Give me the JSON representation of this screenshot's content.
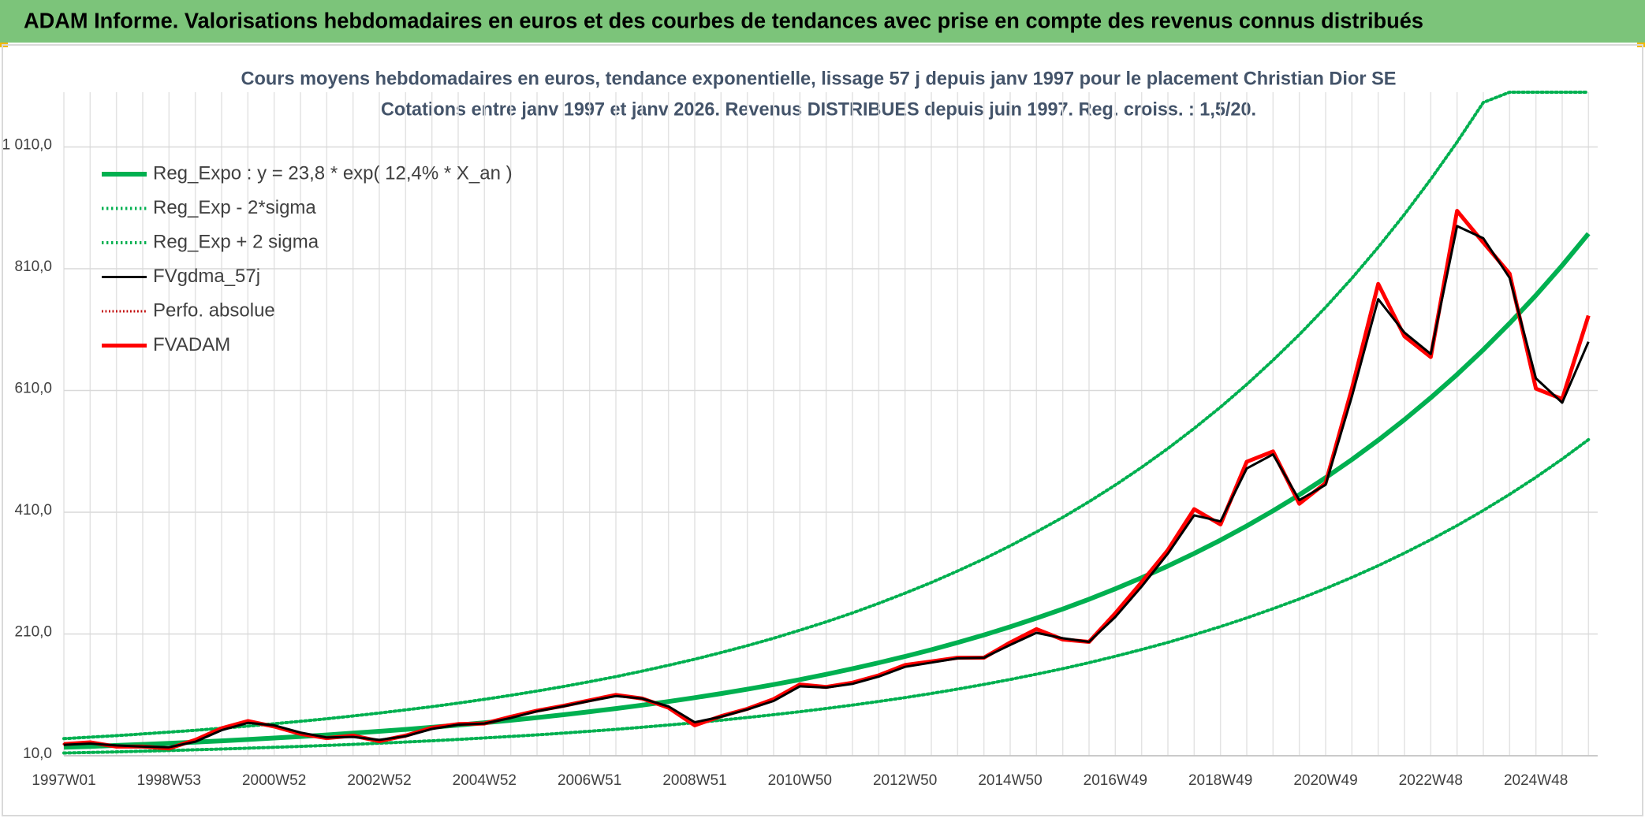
{
  "chart_data": {
    "type": "line",
    "title": "ADAM Informe. Valorisations hebdomadaires en euros et des courbes de tendances avec prise en compte des revenus connus distribués",
    "subtitle": [
      "Cours moyens hebdomadaires en euros, tendance exponentielle, lissage 57 j depuis janv 1997 pour le placement Christian Dior SE",
      "Cotations entre janv 1997 et janv 2026. Revenus DISTRIBUES depuis juin 1997. Reg. croiss. : 1,5/20."
    ],
    "categories": [
      "1997W01",
      null,
      null,
      null,
      "1998W53",
      null,
      null,
      null,
      "2000W52",
      null,
      null,
      null,
      "2002W52",
      null,
      null,
      null,
      "2004W52",
      null,
      null,
      null,
      "2006W51",
      null,
      null,
      null,
      "2008W51",
      null,
      null,
      null,
      "2010W50",
      null,
      null,
      null,
      "2012W50",
      null,
      null,
      null,
      "2014W50",
      null,
      null,
      null,
      "2016W49",
      null,
      null,
      null,
      "2018W49",
      null,
      null,
      null,
      "2020W49",
      null,
      null,
      null,
      "2022W48",
      null,
      null,
      null,
      "2024W48",
      null,
      null
    ],
    "ylim": [
      10,
      1100
    ],
    "yticks": [
      {
        "value": 10,
        "label": "10,0"
      },
      {
        "value": 210,
        "label": "210,0"
      },
      {
        "value": 410,
        "label": "410,0"
      },
      {
        "value": 610,
        "label": "610,0"
      },
      {
        "value": 810,
        "label": "810,0"
      },
      {
        "value": 1010,
        "label": "1 010,0"
      }
    ],
    "grid": true,
    "legend": "top-left",
    "series": [
      {
        "name": "Reg_Expo : y = 23,8 * exp( 12,4% *  X_an )",
        "color": "#00b050",
        "style": "solid",
        "width": 6,
        "values": [
          23.8,
          25.3,
          26.9,
          28.7,
          30.5,
          32.4,
          34.5,
          36.7,
          39.1,
          41.6,
          44.2,
          47.1,
          50.1,
          53.3,
          56.7,
          60.3,
          64.2,
          68.3,
          72.7,
          77.3,
          82.3,
          87.5,
          93.1,
          99.1,
          105.4,
          112.1,
          119.3,
          126.9,
          135.1,
          143.7,
          152.9,
          162.7,
          173.1,
          184.1,
          195.9,
          208.4,
          221.8,
          236.0,
          251.0,
          267.1,
          284.2,
          302.4,
          321.7,
          342.3,
          364.2,
          387.5,
          412.3,
          438.6,
          466.7,
          496.5,
          528.3,
          562.1,
          598.1,
          636.3,
          677.0,
          720.3,
          766.4,
          815.4,
          867.6
        ]
      },
      {
        "name": "Reg_Exp - 2*sigma",
        "color": "#00b050",
        "style": "dotted",
        "width": 4,
        "values": [
          14.5,
          15.4,
          16.4,
          17.5,
          18.6,
          19.8,
          21.0,
          22.4,
          23.9,
          25.4,
          27.0,
          28.7,
          30.6,
          32.5,
          34.6,
          36.8,
          39.2,
          41.7,
          44.3,
          47.2,
          50.2,
          53.4,
          56.8,
          60.5,
          64.3,
          68.4,
          72.8,
          77.4,
          82.4,
          87.7,
          93.3,
          99.2,
          105.6,
          112.3,
          119.5,
          127.1,
          135.3,
          144.0,
          153.1,
          162.9,
          173.4,
          184.5,
          196.2,
          208.8,
          222.2,
          236.4,
          251.5,
          267.5,
          284.7,
          302.9,
          322.3,
          342.9,
          364.8,
          388.1,
          413.0,
          439.4,
          467.5,
          497.4,
          529.2
        ]
      },
      {
        "name": "Reg_Exp + 2 sigma",
        "color": "#00b050",
        "style": "dotted",
        "width": 4,
        "values": [
          38.1,
          40.5,
          43.0,
          45.9,
          48.8,
          51.8,
          55.2,
          58.7,
          62.6,
          66.6,
          70.7,
          75.4,
          80.2,
          85.3,
          90.7,
          96.5,
          102.7,
          109.3,
          116.3,
          123.7,
          131.7,
          140.0,
          149.0,
          158.6,
          168.6,
          179.4,
          190.9,
          203.0,
          216.2,
          229.9,
          244.6,
          260.3,
          277.0,
          294.6,
          313.4,
          333.4,
          354.9,
          377.6,
          401.6,
          427.4,
          454.7,
          483.8,
          514.7,
          547.7,
          582.7,
          620.0,
          659.7,
          701.8,
          746.7,
          794.4,
          845.3,
          899.4,
          957.0,
          1018.1,
          1083.2,
          1100,
          1100,
          1100,
          1100
        ]
      },
      {
        "name": "FVgdma_57j",
        "color": "#000000",
        "style": "solid",
        "width": 3,
        "values": [
          28,
          30,
          27,
          25,
          24,
          33,
          52,
          64,
          60,
          48,
          40,
          41,
          36,
          42,
          54,
          61,
          63,
          72,
          83,
          91,
          100,
          108,
          104,
          91,
          65,
          74,
          86,
          100,
          124,
          122,
          128,
          140,
          156,
          163,
          170,
          171,
          192,
          212,
          203,
          197,
          238,
          288,
          342,
          405,
          395,
          482,
          505,
          430,
          455,
          600,
          760,
          705,
          670,
          880,
          860,
          795,
          630,
          590,
          690
        ]
      },
      {
        "name": "Perfo. absolue",
        "color": "#c00000",
        "style": "dotted",
        "width": 3,
        "values": [
          29,
          32,
          25,
          25,
          22,
          36,
          55,
          67,
          58,
          46,
          39,
          43,
          34,
          43,
          56,
          62,
          63,
          74,
          84,
          92,
          101,
          110,
          104,
          89,
          60,
          75,
          87,
          103,
          127,
          123,
          130,
          142,
          159,
          165,
          171,
          171,
          196,
          218,
          201,
          197,
          244,
          295,
          348,
          415,
          390,
          493,
          510,
          424,
          458,
          613,
          785,
          699,
          665,
          905,
          853,
          802,
          613,
          596,
          733
        ]
      },
      {
        "name": "FVADAM",
        "color": "#ff0000",
        "style": "solid",
        "width": 5,
        "values": [
          29,
          32,
          25,
          25,
          22,
          36,
          55,
          67,
          58,
          46,
          39,
          43,
          34,
          43,
          56,
          62,
          63,
          74,
          84,
          92,
          101,
          110,
          104,
          89,
          60,
          75,
          87,
          103,
          127,
          123,
          130,
          142,
          159,
          165,
          171,
          171,
          196,
          218,
          201,
          197,
          244,
          295,
          348,
          415,
          390,
          493,
          510,
          424,
          458,
          613,
          785,
          699,
          665,
          905,
          853,
          802,
          613,
          596,
          733
        ]
      }
    ]
  }
}
